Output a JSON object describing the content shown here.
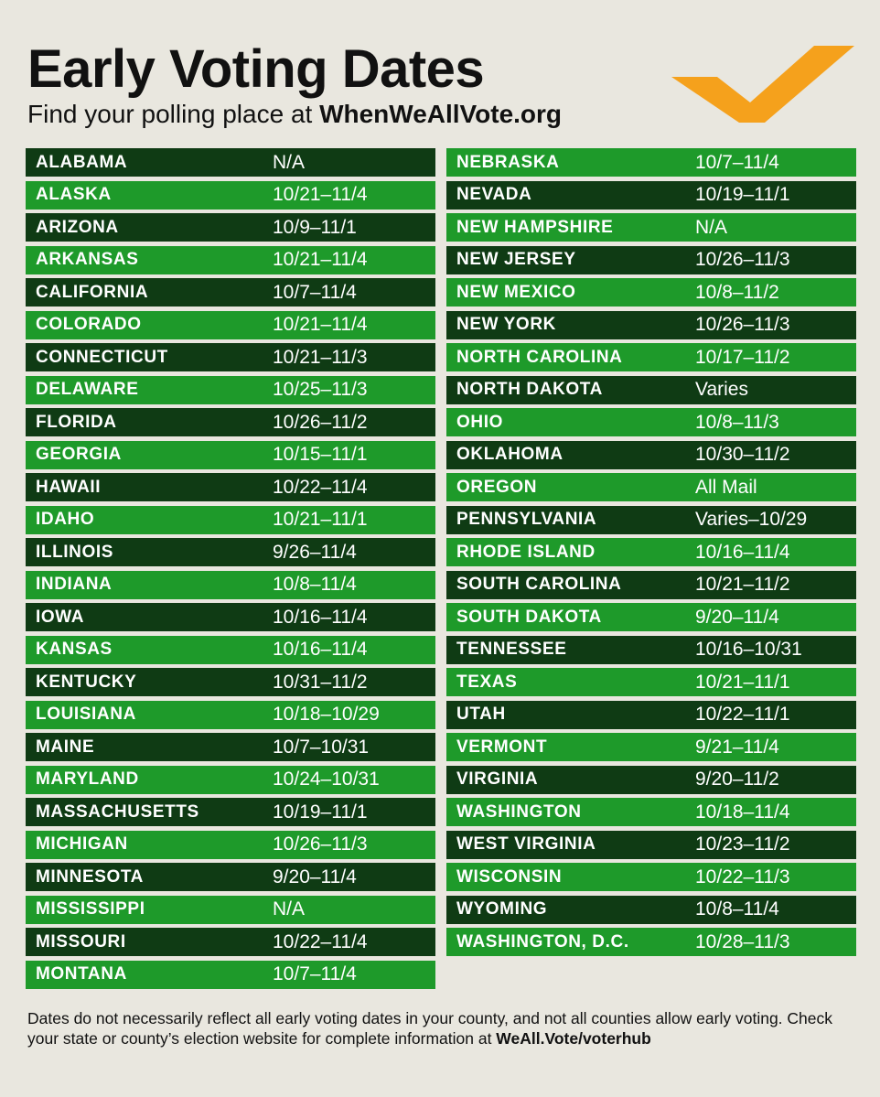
{
  "header": {
    "title": "Early Voting Dates",
    "subtitle_prefix": "Find your polling place at ",
    "subtitle_site": "WhenWeAllVote.org",
    "logo_icon": "checkmark-icon",
    "logo_color": "#f5a11c"
  },
  "colors": {
    "background": "#e9e7df",
    "row_dark": "#0f3b14",
    "row_light": "#1e9a2a"
  },
  "left_column": [
    {
      "state": "ALABAMA",
      "dates": "N/A",
      "tone": "dark"
    },
    {
      "state": "ALASKA",
      "dates": "10/21–11/4",
      "tone": "light"
    },
    {
      "state": "ARIZONA",
      "dates": "10/9–11/1",
      "tone": "dark"
    },
    {
      "state": "ARKANSAS",
      "dates": "10/21–11/4",
      "tone": "light"
    },
    {
      "state": "CALIFORNIA",
      "dates": "10/7–11/4",
      "tone": "dark"
    },
    {
      "state": "COLORADO",
      "dates": "10/21–11/4",
      "tone": "light"
    },
    {
      "state": "CONNECTICUT",
      "dates": "10/21–11/3",
      "tone": "dark"
    },
    {
      "state": "DELAWARE",
      "dates": "10/25–11/3",
      "tone": "light"
    },
    {
      "state": "FLORIDA",
      "dates": "10/26–11/2",
      "tone": "dark"
    },
    {
      "state": "GEORGIA",
      "dates": "10/15–11/1",
      "tone": "light"
    },
    {
      "state": "HAWAII",
      "dates": "10/22–11/4",
      "tone": "dark"
    },
    {
      "state": "IDAHO",
      "dates": "10/21–11/1",
      "tone": "light"
    },
    {
      "state": "ILLINOIS",
      "dates": "9/26–11/4",
      "tone": "dark"
    },
    {
      "state": "INDIANA",
      "dates": "10/8–11/4",
      "tone": "light"
    },
    {
      "state": "IOWA",
      "dates": "10/16–11/4",
      "tone": "dark"
    },
    {
      "state": "KANSAS",
      "dates": "10/16–11/4",
      "tone": "light"
    },
    {
      "state": "KENTUCKY",
      "dates": "10/31–11/2",
      "tone": "dark"
    },
    {
      "state": "LOUISIANA",
      "dates": "10/18–10/29",
      "tone": "light"
    },
    {
      "state": "MAINE",
      "dates": "10/7–10/31",
      "tone": "dark"
    },
    {
      "state": "MARYLAND",
      "dates": "10/24–10/31",
      "tone": "light"
    },
    {
      "state": "MASSACHUSETTS",
      "dates": "10/19–11/1",
      "tone": "dark"
    },
    {
      "state": "MICHIGAN",
      "dates": "10/26–11/3",
      "tone": "light"
    },
    {
      "state": "MINNESOTA",
      "dates": "9/20–11/4",
      "tone": "dark"
    },
    {
      "state": "MISSISSIPPI",
      "dates": "N/A",
      "tone": "light"
    },
    {
      "state": "MISSOURI",
      "dates": "10/22–11/4",
      "tone": "dark"
    },
    {
      "state": "MONTANA",
      "dates": "10/7–11/4",
      "tone": "light"
    }
  ],
  "right_column": [
    {
      "state": "NEBRASKA",
      "dates": "10/7–11/4",
      "tone": "light"
    },
    {
      "state": "NEVADA",
      "dates": "10/19–11/1",
      "tone": "dark"
    },
    {
      "state": "NEW HAMPSHIRE",
      "dates": "N/A",
      "tone": "light"
    },
    {
      "state": "NEW JERSEY",
      "dates": "10/26–11/3",
      "tone": "dark"
    },
    {
      "state": "NEW MEXICO",
      "dates": "10/8–11/2",
      "tone": "light"
    },
    {
      "state": "NEW YORK",
      "dates": "10/26–11/3",
      "tone": "dark"
    },
    {
      "state": "NORTH CAROLINA",
      "dates": "10/17–11/2",
      "tone": "light"
    },
    {
      "state": "NORTH DAKOTA",
      "dates": "Varies",
      "tone": "dark"
    },
    {
      "state": "OHIO",
      "dates": "10/8–11/3",
      "tone": "light"
    },
    {
      "state": "OKLAHOMA",
      "dates": "10/30–11/2",
      "tone": "dark"
    },
    {
      "state": "OREGON",
      "dates": "All Mail",
      "tone": "light"
    },
    {
      "state": "PENNSYLVANIA",
      "dates": "Varies–10/29",
      "tone": "dark"
    },
    {
      "state": "RHODE ISLAND",
      "dates": "10/16–11/4",
      "tone": "light"
    },
    {
      "state": "SOUTH CAROLINA",
      "dates": "10/21–11/2",
      "tone": "dark"
    },
    {
      "state": "SOUTH DAKOTA",
      "dates": "9/20–11/4",
      "tone": "light"
    },
    {
      "state": "TENNESSEE",
      "dates": "10/16–10/31",
      "tone": "dark"
    },
    {
      "state": "TEXAS",
      "dates": "10/21–11/1",
      "tone": "light"
    },
    {
      "state": "UTAH",
      "dates": "10/22–11/1",
      "tone": "dark"
    },
    {
      "state": "VERMONT",
      "dates": "9/21–11/4",
      "tone": "light"
    },
    {
      "state": "VIRGINIA",
      "dates": "9/20–11/2",
      "tone": "dark"
    },
    {
      "state": "WASHINGTON",
      "dates": "10/18–11/4",
      "tone": "light"
    },
    {
      "state": "WEST VIRGINIA",
      "dates": "10/23–11/2",
      "tone": "dark"
    },
    {
      "state": "WISCONSIN",
      "dates": "10/22–11/3",
      "tone": "light"
    },
    {
      "state": "WYOMING",
      "dates": "10/8–11/4",
      "tone": "dark"
    },
    {
      "state": "WASHINGTON, D.C.",
      "dates": "10/28–11/3",
      "tone": "light"
    }
  ],
  "footnote": {
    "text": "Dates do not necessarily reflect all early voting dates in your county, and not all counties allow early voting. Check your state or county’s election website for complete information at ",
    "link": "WeAll.Vote/voterhub"
  }
}
